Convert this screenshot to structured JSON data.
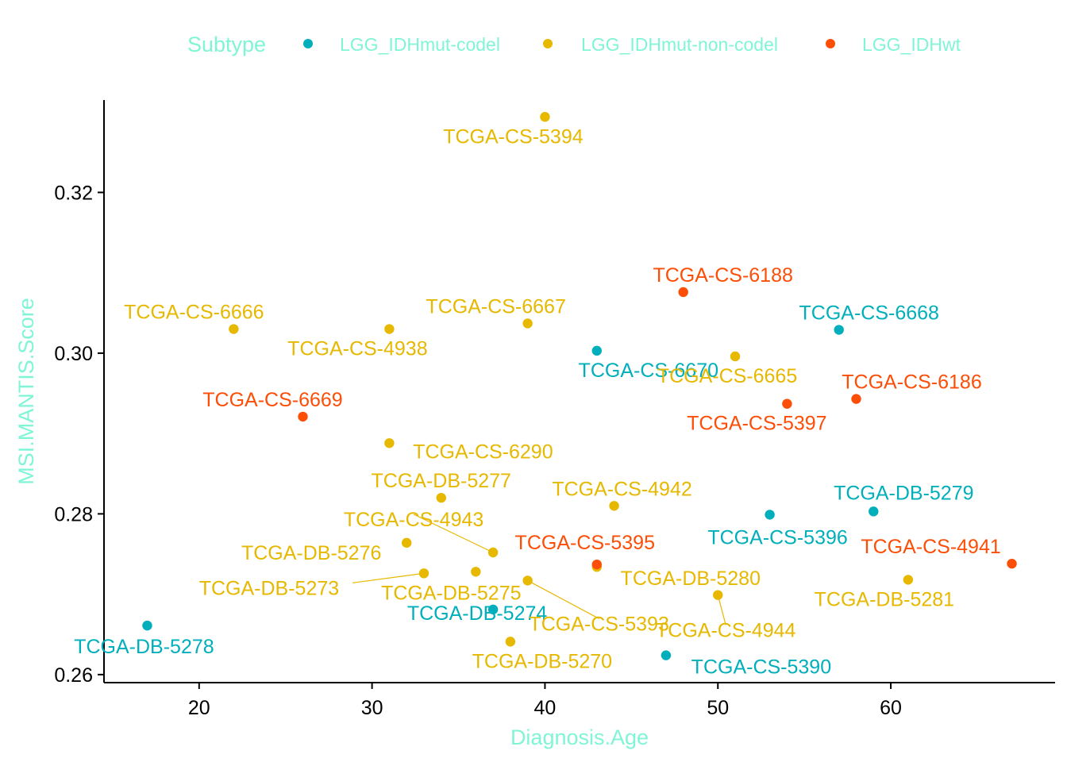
{
  "chart_data": {
    "type": "scatter",
    "title": "",
    "xlabel": "Diagnosis.Age",
    "ylabel": "MSI.MANTIS.Score",
    "xlim": [
      14.5,
      69.5
    ],
    "ylim": [
      0.259,
      0.3315
    ],
    "x_ticks": [
      20,
      30,
      40,
      50,
      60
    ],
    "y_ticks": [
      0.26,
      0.28,
      0.3,
      0.32
    ],
    "x_tick_labels": [
      "20",
      "30",
      "40",
      "50",
      "60"
    ],
    "y_tick_labels": [
      "0.26",
      "0.28",
      "0.30",
      "0.32"
    ],
    "grid": false,
    "legend_position": "top",
    "legend_title": "Subtype",
    "label_color": "#7ff5d6",
    "series": [
      {
        "name": "LGG_IDHmut-codel",
        "color": "#00AFBB",
        "points": [
          {
            "x": 17,
            "y": 0.2661,
            "label": "TCGA-DB-5278"
          },
          {
            "x": 37,
            "y": 0.2681,
            "label": "TCGA-DB-5274"
          },
          {
            "x": 43,
            "y": 0.3003,
            "label": "TCGA-CS-6670"
          },
          {
            "x": 47,
            "y": 0.2624,
            "label": "TCGA-CS-5390"
          },
          {
            "x": 53,
            "y": 0.2799,
            "label": "TCGA-CS-5396"
          },
          {
            "x": 57,
            "y": 0.3029,
            "label": "TCGA-CS-6668"
          },
          {
            "x": 59,
            "y": 0.2803,
            "label": "TCGA-DB-5279"
          }
        ]
      },
      {
        "name": "LGG_IDHmut-non-codel",
        "color": "#E7B800",
        "points": [
          {
            "x": 22,
            "y": 0.303,
            "label": "TCGA-CS-6666"
          },
          {
            "x": 31,
            "y": 0.303,
            "label": "TCGA-CS-4938"
          },
          {
            "x": 31,
            "y": 0.2888,
            "label": "TCGA-CS-6290"
          },
          {
            "x": 32,
            "y": 0.2764,
            "label": "TCGA-DB-5276"
          },
          {
            "x": 33,
            "y": 0.2726,
            "label": "TCGA-DB-5273"
          },
          {
            "x": 34,
            "y": 0.282,
            "label": "TCGA-DB-5277"
          },
          {
            "x": 36,
            "y": 0.2728,
            "label": "TCGA-DB-5275"
          },
          {
            "x": 37,
            "y": 0.2752,
            "label": "TCGA-CS-4943"
          },
          {
            "x": 38,
            "y": 0.2641,
            "label": "TCGA-DB-5270"
          },
          {
            "x": 39,
            "y": 0.3037,
            "label": "TCGA-CS-6667"
          },
          {
            "x": 39,
            "y": 0.2717,
            "label": "TCGA-CS-5393"
          },
          {
            "x": 40,
            "y": 0.3294,
            "label": "TCGA-CS-5394"
          },
          {
            "x": 43,
            "y": 0.2734,
            "label": "TCGA-DB-5280"
          },
          {
            "x": 44,
            "y": 0.281,
            "label": "TCGA-CS-4942"
          },
          {
            "x": 50,
            "y": 0.2699,
            "label": "TCGA-CS-4944"
          },
          {
            "x": 51,
            "y": 0.2996,
            "label": "TCGA-CS-6665"
          },
          {
            "x": 61,
            "y": 0.2718,
            "label": "TCGA-DB-5281"
          }
        ]
      },
      {
        "name": "LGG_IDHwt",
        "color": "#FC4E07",
        "points": [
          {
            "x": 26,
            "y": 0.2921,
            "label": "TCGA-CS-6669"
          },
          {
            "x": 43,
            "y": 0.2737,
            "label": "TCGA-CS-5395"
          },
          {
            "x": 48,
            "y": 0.3076,
            "label": "TCGA-CS-6188"
          },
          {
            "x": 54,
            "y": 0.2937,
            "label": "TCGA-CS-5397"
          },
          {
            "x": 58,
            "y": 0.2943,
            "label": "TCGA-CS-6186"
          },
          {
            "x": 67,
            "y": 0.2738,
            "label": "TCGA-CS-4941"
          }
        ]
      }
    ]
  }
}
